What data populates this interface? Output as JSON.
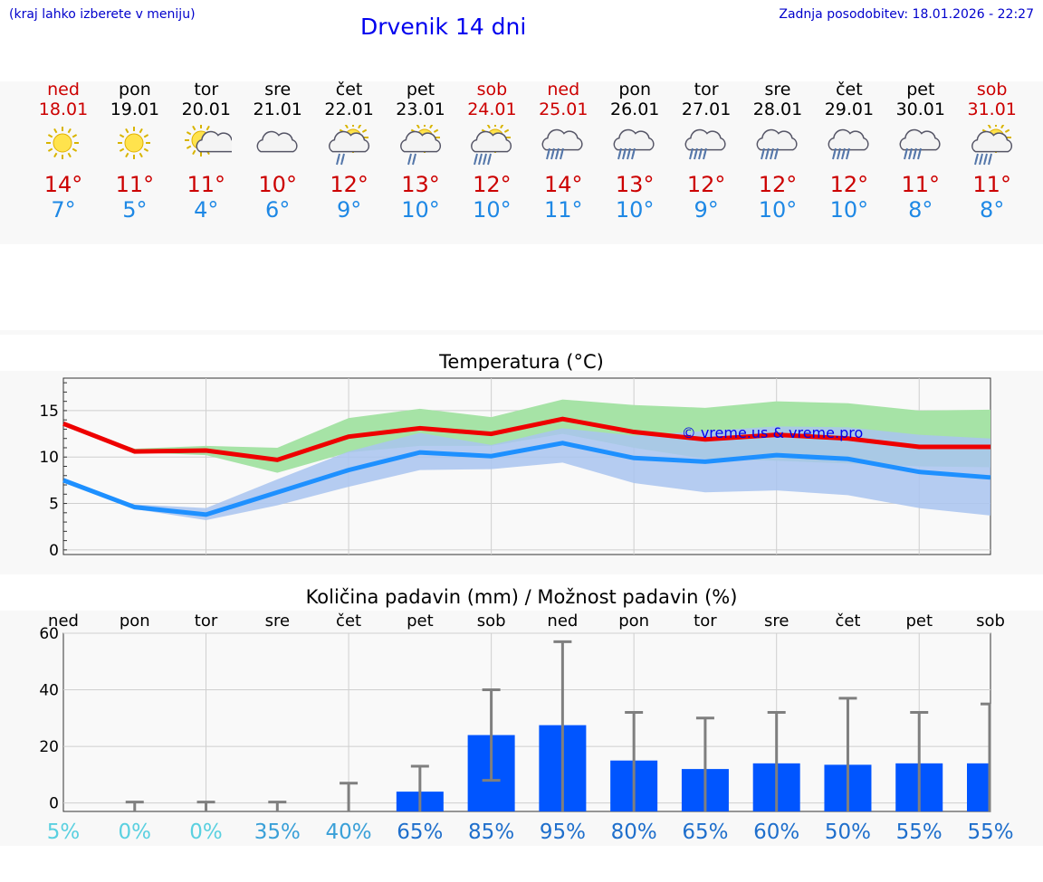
{
  "header": {
    "note": "(kraj lahko izberete v meniju)",
    "title": "Drvenik 14 dni",
    "updated": "Zadnja posodobitev: 18.01.2026 - 22:27"
  },
  "days": [
    {
      "name": "ned",
      "date": "18.01",
      "hi": "14°",
      "lo": "7°",
      "icon": "sunny-icon",
      "weekend": true
    },
    {
      "name": "pon",
      "date": "19.01",
      "hi": "11°",
      "lo": "5°",
      "icon": "sunny-icon",
      "weekend": false
    },
    {
      "name": "tor",
      "date": "20.01",
      "hi": "11°",
      "lo": "4°",
      "icon": "partly-cloudy-icon",
      "weekend": false
    },
    {
      "name": "sre",
      "date": "21.01",
      "hi": "10°",
      "lo": "6°",
      "icon": "cloudy-icon",
      "weekend": false
    },
    {
      "name": "čet",
      "date": "22.01",
      "hi": "12°",
      "lo": "9°",
      "icon": "sun-cloud-rain-icon",
      "weekend": false
    },
    {
      "name": "pet",
      "date": "23.01",
      "hi": "13°",
      "lo": "10°",
      "icon": "sun-cloud-rain-icon",
      "weekend": false
    },
    {
      "name": "sob",
      "date": "24.01",
      "hi": "12°",
      "lo": "10°",
      "icon": "sun-cloud-heavy-rain-icon",
      "weekend": true
    },
    {
      "name": "ned",
      "date": "25.01",
      "hi": "14°",
      "lo": "11°",
      "icon": "cloud-rain-icon",
      "weekend": true
    },
    {
      "name": "pon",
      "date": "26.01",
      "hi": "13°",
      "lo": "10°",
      "icon": "cloud-rain-icon",
      "weekend": false
    },
    {
      "name": "tor",
      "date": "27.01",
      "hi": "12°",
      "lo": "9°",
      "icon": "cloud-rain-icon",
      "weekend": false
    },
    {
      "name": "sre",
      "date": "28.01",
      "hi": "12°",
      "lo": "10°",
      "icon": "cloud-rain-icon",
      "weekend": false
    },
    {
      "name": "čet",
      "date": "29.01",
      "hi": "12°",
      "lo": "10°",
      "icon": "cloud-rain-icon",
      "weekend": false
    },
    {
      "name": "pet",
      "date": "30.01",
      "hi": "11°",
      "lo": "8°",
      "icon": "cloud-rain-icon",
      "weekend": false
    },
    {
      "name": "sob",
      "date": "31.01",
      "hi": "11°",
      "lo": "8°",
      "icon": "sun-cloud-heavy-rain-icon",
      "weekend": true
    }
  ],
  "colors": {
    "weekend": "#cc0000",
    "hi": "#ee0000",
    "lo": "#1e90ff",
    "hiBand": "#a6e3a6",
    "loBand": "#a9c4f0",
    "overlap": "#7cc4a8",
    "bar": "#0055ff",
    "err": "#7f7f7f"
  },
  "chart_data": [
    {
      "type": "line",
      "title": "Temperatura (°C)",
      "watermark": "© vreme.us & vreme.pro",
      "ylim": [
        -0.5,
        18.5
      ],
      "yticks": [
        0,
        5,
        10,
        15
      ],
      "x": [
        0,
        1,
        2,
        3,
        4,
        5,
        6,
        7,
        8,
        9,
        10,
        11,
        12,
        13
      ],
      "series": [
        {
          "name": "max",
          "values": [
            13.6,
            10.6,
            10.7,
            9.7,
            12.2,
            13.1,
            12.5,
            14.1,
            12.7,
            11.9,
            12.4,
            12.0,
            11.1,
            11.1
          ],
          "band_low": [
            13.6,
            10.5,
            10.2,
            8.3,
            10.5,
            11.2,
            11.2,
            12.5,
            11.0,
            9.8,
            9.6,
            9.3,
            9.0,
            8.9
          ],
          "band_high": [
            13.6,
            10.9,
            11.2,
            11.0,
            14.2,
            15.2,
            14.3,
            16.2,
            15.6,
            15.3,
            16.0,
            15.8,
            15.0,
            15.1
          ]
        },
        {
          "name": "min",
          "values": [
            7.5,
            4.6,
            3.8,
            6.2,
            8.6,
            10.5,
            10.1,
            11.5,
            9.9,
            9.5,
            10.2,
            9.8,
            8.4,
            7.8
          ],
          "band_low": [
            7.5,
            4.4,
            3.2,
            4.8,
            6.8,
            8.6,
            8.7,
            9.4,
            7.2,
            6.2,
            6.4,
            5.9,
            4.5,
            3.7
          ],
          "band_high": [
            7.5,
            4.9,
            4.5,
            7.6,
            10.6,
            12.6,
            11.3,
            13.1,
            12.3,
            12.8,
            13.3,
            13.2,
            12.4,
            12.0
          ]
        }
      ]
    },
    {
      "type": "bar",
      "title": "Količina padavin (mm) / Možnost padavin (%)",
      "categories": [
        "ned",
        "pon",
        "tor",
        "sre",
        "čet",
        "pet",
        "sob",
        "ned",
        "pon",
        "tor",
        "sre",
        "čet",
        "pet",
        "sob"
      ],
      "values": [
        0,
        0,
        0,
        0,
        0,
        4,
        24,
        27.5,
        15,
        12,
        14,
        13.5,
        14,
        14
      ],
      "err_high": [
        0,
        0.3,
        0.3,
        0.3,
        7,
        13,
        40,
        57,
        32,
        30,
        32,
        37,
        32,
        35
      ],
      "err_low": [
        0,
        0,
        0,
        0,
        0,
        0,
        8,
        0,
        0,
        0,
        0,
        0,
        0,
        0
      ],
      "probability": [
        "5%",
        "0%",
        "0%",
        "35%",
        "40%",
        "65%",
        "85%",
        "95%",
        "80%",
        "65%",
        "60%",
        "50%",
        "55%",
        "55%"
      ],
      "prob_colors": [
        "#5ad0e0",
        "#5ad0e0",
        "#5ad0e0",
        "#3aa0d8",
        "#3aa0d8",
        "#1f6fcc",
        "#1f6fcc",
        "#1f6fcc",
        "#1f6fcc",
        "#1f6fcc",
        "#1f6fcc",
        "#1f6fcc",
        "#1f6fcc",
        "#1f6fcc"
      ],
      "ylim": [
        -3,
        60
      ],
      "yticks": [
        0,
        20,
        40,
        60
      ]
    }
  ]
}
